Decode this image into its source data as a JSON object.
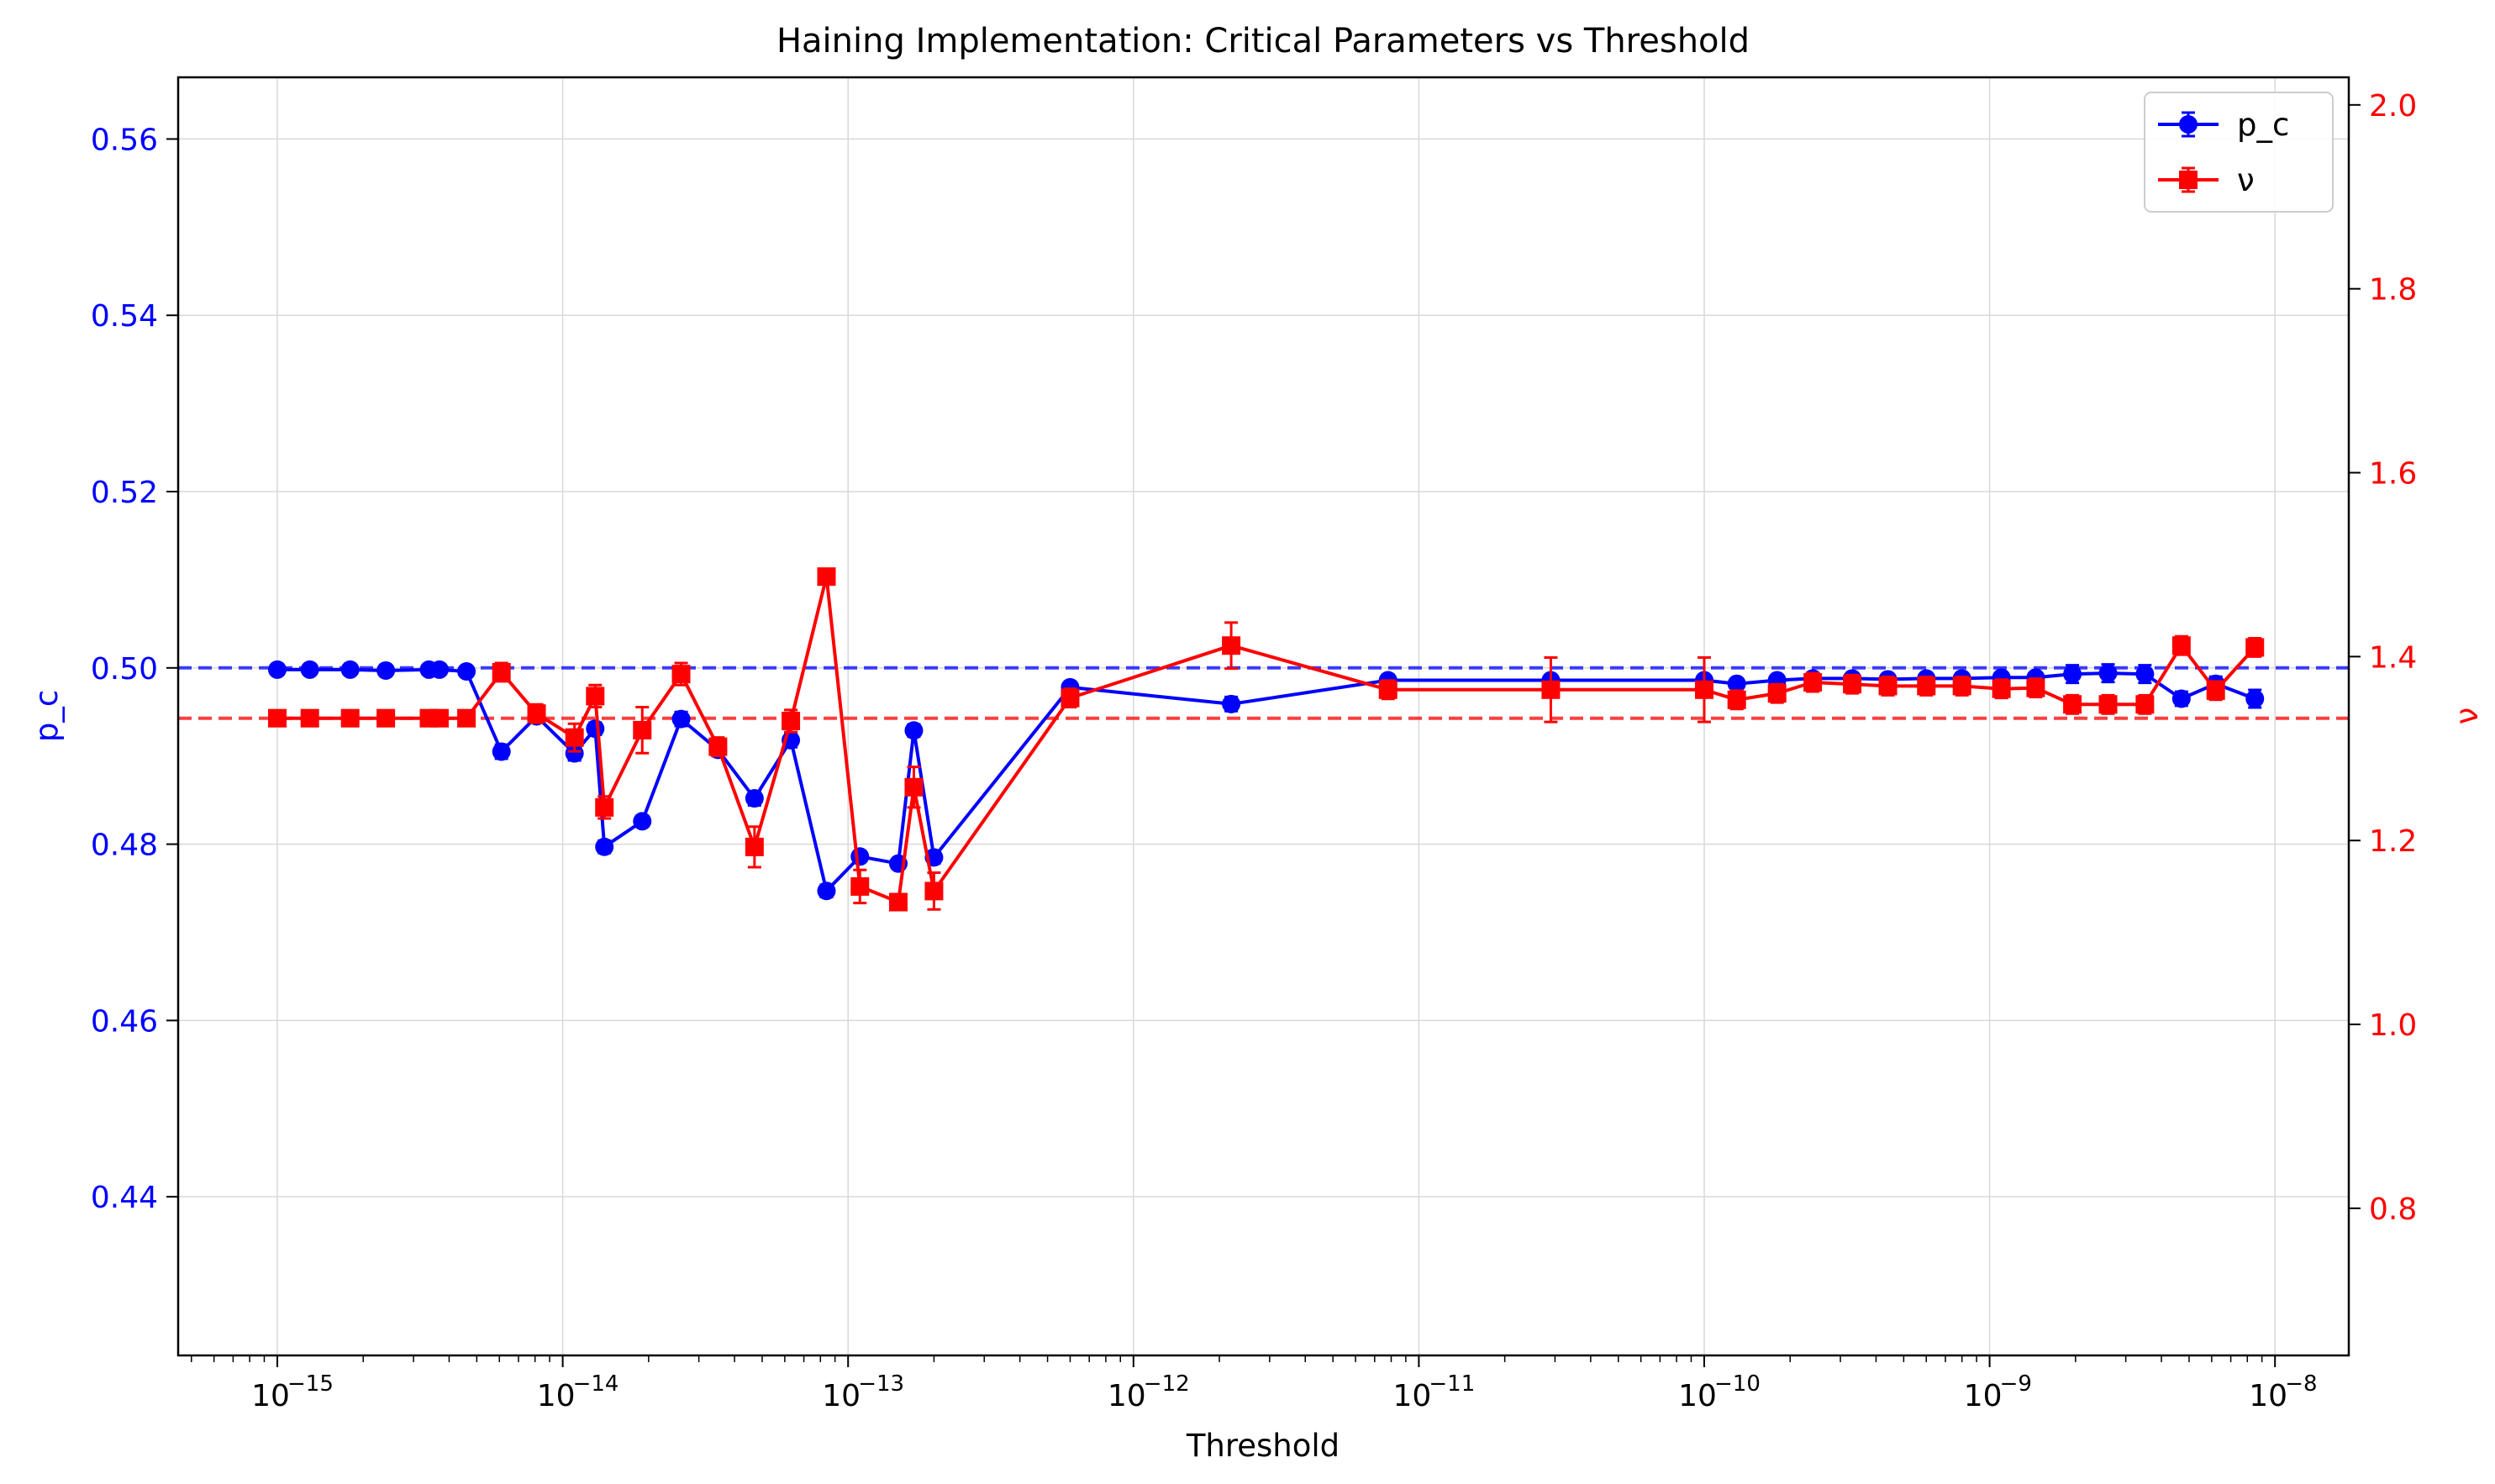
{
  "chart_data": {
    "type": "line",
    "title": "Haining Implementation: Critical Parameters vs Threshold",
    "xlabel": "Threshold",
    "x_scale": "log",
    "x_ticks": [
      "1e-15",
      "1e-14",
      "1e-13",
      "1e-12",
      "1e-11",
      "1e-10",
      "1e-9",
      "1e-8"
    ],
    "x_tick_labels": [
      {
        "base": "10",
        "exp": "−15"
      },
      {
        "base": "10",
        "exp": "−14"
      },
      {
        "base": "10",
        "exp": "−13"
      },
      {
        "base": "10",
        "exp": "−12"
      },
      {
        "base": "10",
        "exp": "−11"
      },
      {
        "base": "10",
        "exp": "−10"
      },
      {
        "base": "10",
        "exp": "−9"
      },
      {
        "base": "10",
        "exp": "−8"
      }
    ],
    "y_left": {
      "label": "p_c",
      "color": "#0000ff",
      "lim": [
        0.422,
        0.567
      ],
      "ticks": [
        "0.44",
        "0.46",
        "0.48",
        "0.50",
        "0.52",
        "0.54",
        "0.56"
      ]
    },
    "y_right": {
      "label": "ν",
      "color": "#ff0000",
      "lim": [
        0.64,
        2.03
      ],
      "ticks": [
        "0.8",
        "1.0",
        "1.2",
        "1.4",
        "1.6",
        "1.8",
        "2.0"
      ]
    },
    "grid": true,
    "legend": {
      "position": "top-right",
      "entries": [
        "p_c",
        "ν"
      ]
    },
    "reference_lines": [
      {
        "axis": "left",
        "value": 0.5,
        "color": "#0000ff",
        "style": "dashed"
      },
      {
        "axis": "right",
        "value": 1.333,
        "color": "#ff0000",
        "style": "dashed"
      }
    ],
    "series": [
      {
        "name": "p_c",
        "axis": "left",
        "color": "#0000ff",
        "marker": "circle",
        "x": [
          1e-15,
          1.3e-15,
          1.8e-15,
          2.4e-15,
          3.4e-15,
          3.7e-15,
          4.6e-15,
          6.1e-15,
          8.1e-15,
          1.1e-14,
          1.3e-14,
          1.4e-14,
          1.9e-14,
          2.6e-14,
          3.5e-14,
          4.7e-14,
          6.3e-14,
          8.4e-14,
          1.1e-13,
          1.5e-13,
          1.7e-13,
          2e-13,
          6e-13,
          2.2e-12,
          7.8e-12,
          2.9e-11,
          1e-10,
          1.3e-10,
          1.8e-10,
          2.4e-10,
          3.3e-10,
          4.4e-10,
          6e-10,
          8e-10,
          1.1e-09,
          1.45e-09,
          1.95e-09,
          2.6e-09,
          3.5e-09,
          4.7e-09,
          6.2e-09,
          8.5e-09
        ],
        "y": [
          0.4998,
          0.4998,
          0.4998,
          0.4997,
          0.4998,
          0.4998,
          0.4996,
          0.4905,
          0.4945,
          0.4903,
          0.4931,
          0.4797,
          0.4826,
          0.4942,
          0.4907,
          0.4852,
          0.4918,
          0.4747,
          0.4786,
          0.4778,
          0.4929,
          0.4785,
          0.4978,
          0.4959,
          0.4986,
          0.4986,
          0.4986,
          0.4982,
          0.4986,
          0.4988,
          0.4988,
          0.4987,
          0.4988,
          0.4988,
          0.4989,
          0.4989,
          0.4993,
          0.4994,
          0.4993,
          0.4965,
          0.4982,
          0.4965
        ],
        "err": [
          0.0006,
          0.0005,
          0.0004,
          0.0004,
          0.0005,
          0.0005,
          0.0005,
          0.0008,
          0.0006,
          0.0008,
          0.0007,
          0.0007,
          0.0006,
          0.0008,
          0.0007,
          0.0008,
          0.0008,
          0.0007,
          0.0006,
          0.0006,
          0.0007,
          0.0007,
          0.0006,
          0.0008,
          0.0006,
          0.0006,
          0.0006,
          0.0005,
          0.0005,
          0.0005,
          0.0005,
          0.0005,
          0.0005,
          0.0005,
          0.0005,
          0.0005,
          0.001,
          0.001,
          0.001,
          0.0008,
          0.0008,
          0.001
        ]
      },
      {
        "name": "ν",
        "axis": "right",
        "color": "#ff0000",
        "marker": "square",
        "x": [
          1e-15,
          1.3e-15,
          1.8e-15,
          2.4e-15,
          3.4e-15,
          3.7e-15,
          4.6e-15,
          6.1e-15,
          8.1e-15,
          1.1e-14,
          1.3e-14,
          1.4e-14,
          1.9e-14,
          2.6e-14,
          3.5e-14,
          4.7e-14,
          6.3e-14,
          8.4e-14,
          1.1e-13,
          1.5e-13,
          1.7e-13,
          2e-13,
          6e-13,
          2.2e-12,
          7.8e-12,
          2.9e-11,
          1e-10,
          1.3e-10,
          1.8e-10,
          2.4e-10,
          3.3e-10,
          4.4e-10,
          6e-10,
          8e-10,
          1.1e-09,
          1.45e-09,
          1.95e-09,
          2.6e-09,
          3.5e-09,
          4.7e-09,
          6.2e-09,
          8.5e-09
        ],
        "y": [
          1.333,
          1.333,
          1.333,
          1.333,
          1.333,
          1.333,
          1.333,
          1.383,
          1.338,
          1.312,
          1.357,
          1.236,
          1.32,
          1.381,
          1.302,
          1.193,
          1.33,
          1.487,
          1.15,
          1.133,
          1.258,
          1.145,
          1.355,
          1.412,
          1.364,
          1.364,
          1.364,
          1.353,
          1.36,
          1.372,
          1.37,
          1.368,
          1.368,
          1.368,
          1.365,
          1.366,
          1.348,
          1.348,
          1.348,
          1.412,
          1.363,
          1.41
        ],
        "err": [
          0.006,
          0.005,
          0.005,
          0.005,
          0.005,
          0.005,
          0.005,
          0.01,
          0.01,
          0.015,
          0.012,
          0.012,
          0.025,
          0.012,
          0.01,
          0.022,
          0.012,
          0.008,
          0.018,
          0.008,
          0.022,
          0.02,
          0.01,
          0.025,
          0.01,
          0.035,
          0.035,
          0.01,
          0.01,
          0.01,
          0.01,
          0.01,
          0.01,
          0.01,
          0.01,
          0.01,
          0.01,
          0.01,
          0.01,
          0.01,
          0.01,
          0.01
        ]
      }
    ]
  }
}
